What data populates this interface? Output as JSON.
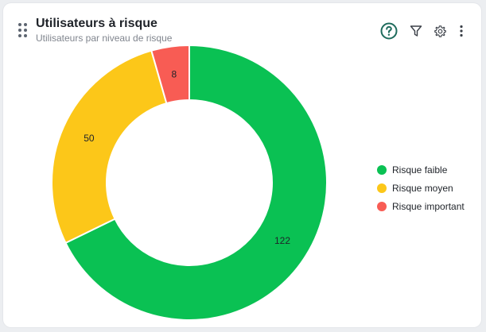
{
  "widget": {
    "title": "Utilisateurs à risque",
    "subtitle": "Utilisateurs par niveau de risque",
    "toolbar_icons": [
      "help-circle-icon",
      "filter-icon",
      "gear-icon",
      "more-vertical-icon"
    ],
    "accent_color": "#1e6b5c"
  },
  "chart_data": {
    "type": "pie",
    "variant": "donut",
    "title": "",
    "categories": [
      "Risque faible",
      "Risque moyen",
      "Risque important"
    ],
    "values": [
      122,
      50,
      8
    ],
    "colors": [
      "#0ac153",
      "#fcc719",
      "#f85c54"
    ],
    "data_labels": [
      "122",
      "50",
      "8"
    ],
    "legend_position": "right"
  }
}
